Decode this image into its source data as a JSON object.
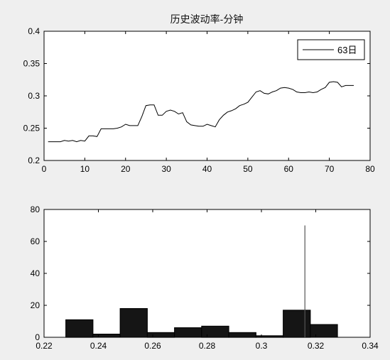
{
  "chart_data": [
    {
      "type": "line",
      "title": "历史波动率-分钟",
      "xlabel": "",
      "ylabel": "",
      "xlim": [
        0,
        80
      ],
      "ylim": [
        0.2,
        0.4
      ],
      "xticks": [
        "0",
        "10",
        "20",
        "30",
        "40",
        "50",
        "60",
        "70",
        "80"
      ],
      "yticks": [
        "0.2",
        "0.25",
        "0.3",
        "0.35",
        "0.4"
      ],
      "legend": "top-right",
      "grid": false,
      "series": [
        {
          "name": "63日",
          "x": [
            1,
            2,
            3,
            4,
            5,
            6,
            7,
            8,
            9,
            10,
            11,
            12,
            13,
            14,
            15,
            16,
            17,
            18,
            19,
            20,
            21,
            22,
            23,
            24,
            25,
            26,
            27,
            28,
            29,
            30,
            31,
            32,
            33,
            34,
            35,
            36,
            37,
            38,
            39,
            40,
            41,
            42,
            43,
            44,
            45,
            46,
            47,
            48,
            49,
            50,
            51,
            52,
            53,
            54,
            55,
            56,
            57,
            58,
            59,
            60,
            61,
            62,
            63,
            64,
            65,
            66,
            67,
            68,
            69,
            70,
            71,
            72,
            73,
            74,
            75,
            76
          ],
          "y": [
            0.229,
            0.229,
            0.229,
            0.229,
            0.231,
            0.23,
            0.231,
            0.229,
            0.231,
            0.23,
            0.238,
            0.238,
            0.237,
            0.249,
            0.249,
            0.249,
            0.249,
            0.25,
            0.252,
            0.256,
            0.254,
            0.254,
            0.254,
            0.268,
            0.285,
            0.286,
            0.286,
            0.27,
            0.27,
            0.276,
            0.278,
            0.276,
            0.272,
            0.274,
            0.26,
            0.255,
            0.254,
            0.253,
            0.253,
            0.256,
            0.254,
            0.252,
            0.263,
            0.27,
            0.275,
            0.277,
            0.28,
            0.285,
            0.287,
            0.29,
            0.298,
            0.306,
            0.308,
            0.304,
            0.303,
            0.306,
            0.308,
            0.312,
            0.313,
            0.312,
            0.31,
            0.306,
            0.305,
            0.305,
            0.306,
            0.305,
            0.306,
            0.31,
            0.313,
            0.321,
            0.322,
            0.321,
            0.314,
            0.316,
            0.316,
            0.316
          ]
        }
      ]
    },
    {
      "type": "bar",
      "title": "",
      "xlabel": "",
      "ylabel": "",
      "xlim": [
        0.22,
        0.34
      ],
      "ylim": [
        0,
        80
      ],
      "xticks": [
        "0.22",
        "0.24",
        "0.26",
        "0.28",
        "0.3",
        "0.32",
        "0.34"
      ],
      "yticks": [
        "0",
        "20",
        "40",
        "60",
        "80"
      ],
      "grid": false,
      "bin_width": 0.01,
      "bin_centers": [
        0.233,
        0.243,
        0.253,
        0.263,
        0.273,
        0.283,
        0.293,
        0.303,
        0.313,
        0.323
      ],
      "values": [
        11,
        2,
        18,
        3,
        6,
        7,
        3,
        1,
        17,
        8
      ],
      "marker_line": {
        "x": 0.316,
        "y": 70
      }
    }
  ]
}
